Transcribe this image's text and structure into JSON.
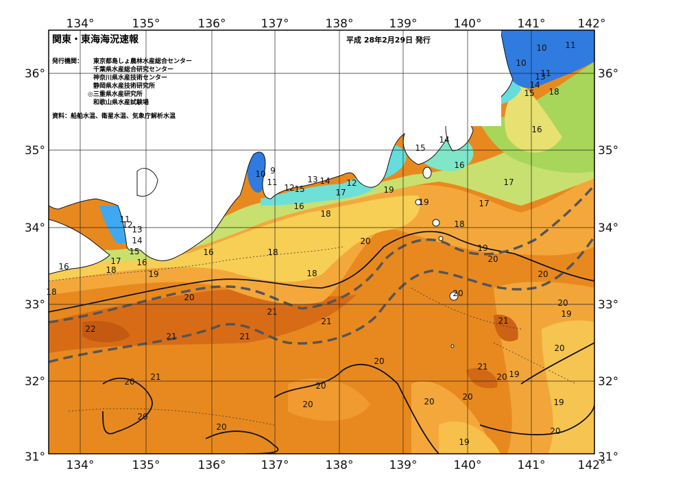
{
  "header": {
    "title": "関東・東海海況速報",
    "date": "平成 28年2月29日 発行",
    "issuer_label": "発行機関：",
    "issuers": [
      "東京都島しょ農林水産総合センター",
      "千葉県水産総合研究センター",
      "神奈川県水産技術センター",
      "静岡県水産技術研究所",
      "◎三重県水産研究所",
      "和歌山県水産試験場"
    ],
    "sources": "資料：船舶水温、衛星水温、気象庁解析水温"
  },
  "axes": {
    "lon_labels": [
      "134°",
      "135°",
      "136°",
      "137°",
      "138°",
      "139°",
      "140°",
      "141°",
      "142°"
    ],
    "lat_labels": [
      "36°",
      "35°",
      "34°",
      "33°",
      "32°",
      "31°"
    ]
  },
  "isotherm_labels": [
    "10",
    "11",
    "10",
    "11",
    "13",
    "15",
    "14",
    "18",
    "14",
    "16",
    "15",
    "16",
    "17",
    "17",
    "10",
    "9",
    "11",
    "12",
    "15",
    "13",
    "14",
    "12",
    "17",
    "19",
    "16",
    "19",
    "18",
    "18",
    "11",
    "12",
    "13",
    "14",
    "15",
    "16",
    "17",
    "18",
    "19",
    "16",
    "18",
    "18",
    "20",
    "20",
    "19",
    "20",
    "20",
    "21",
    "21",
    "21",
    "21",
    "22",
    "20",
    "21",
    "20",
    "20",
    "20",
    "20",
    "20",
    "21",
    "20",
    "19",
    "19",
    "20",
    "21",
    "20",
    "19",
    "20",
    "19",
    "18"
  ],
  "colors": {
    "sea_warm": "#e8881e",
    "sea_core": "#d46a15",
    "sea_mid": "#f2a53a",
    "sea_cool": "#f7d35a",
    "sea_green": "#a8d860",
    "sea_cyan": "#6fe0e0",
    "sea_blue": "#2f7be0",
    "land": "#ffffff",
    "kuroshio_axis": "#555555"
  },
  "map_data": {
    "type": "sea-surface-temperature-map",
    "lon_range": [
      133.5,
      142.0
    ],
    "lat_range": [
      31.0,
      36.5
    ],
    "kuroshio_paths": "two dashed grey lines marking the Kuroshio current edges"
  }
}
